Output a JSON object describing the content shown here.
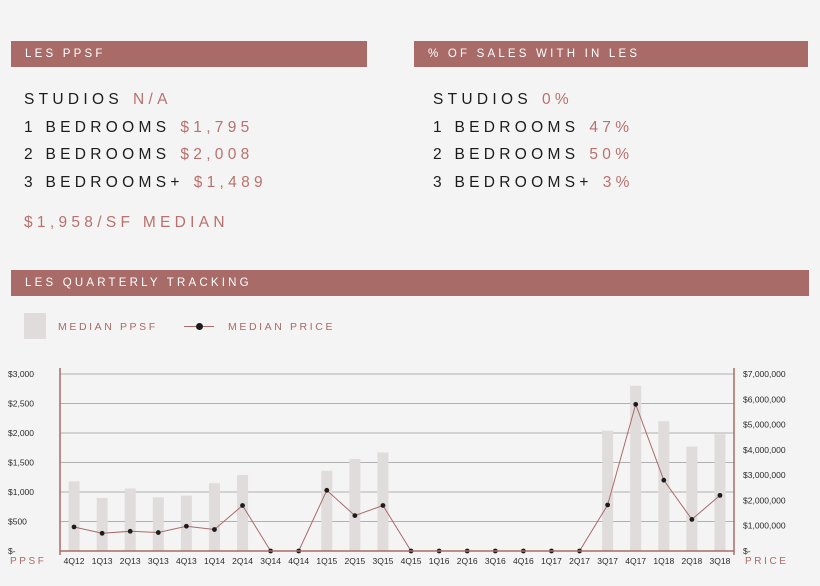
{
  "ppsf_section": {
    "header": "LES PPSF",
    "rows": [
      {
        "label": "STUDIOS",
        "value": "N/A"
      },
      {
        "label": "1 BEDROOMS",
        "value": "$1,795"
      },
      {
        "label": "2 BEDROOMS",
        "value": "$2,008"
      },
      {
        "label": "3 BEDROOMS+",
        "value": "$1,489"
      }
    ],
    "median": "$1,958/SF MEDIAN"
  },
  "sales_section": {
    "header": "% OF SALES WITH IN LES",
    "rows": [
      {
        "label": "STUDIOS",
        "value": "0%"
      },
      {
        "label": "1 BEDROOMS",
        "value": "47%"
      },
      {
        "label": "2 BEDROOMS",
        "value": "50%"
      },
      {
        "label": "3 BEDROOMS+",
        "value": "3%"
      }
    ]
  },
  "tracking_section": {
    "header": "LES QUARTERLY TRACKING"
  },
  "colors": {
    "accent": "#a86b68",
    "accent_text": "#b8716d",
    "bar": "#e1dcdc",
    "line": "#a86b68",
    "point": "#1c1c1c",
    "grid": "#9a9a9a"
  },
  "chart_data": {
    "type": "bar",
    "categories": [
      "4Q12",
      "1Q13",
      "2Q13",
      "3Q13",
      "4Q13",
      "1Q14",
      "2Q14",
      "3Q14",
      "4Q14",
      "1Q15",
      "2Q15",
      "3Q15",
      "4Q15",
      "1Q16",
      "2Q16",
      "3Q16",
      "4Q16",
      "1Q17",
      "2Q17",
      "3Q17",
      "4Q17",
      "1Q18",
      "2Q18",
      "3Q18"
    ],
    "series": [
      {
        "name": "MEDIAN PPSF",
        "type": "bar",
        "axis": "left",
        "values": [
          1180,
          900,
          1060,
          910,
          940,
          1150,
          1290,
          0,
          0,
          1360,
          1560,
          1670,
          0,
          0,
          0,
          0,
          0,
          0,
          0,
          2040,
          2800,
          2200,
          1770,
          1980
        ]
      },
      {
        "name": "MEDIAN PRICE",
        "type": "line",
        "axis": "right",
        "values": [
          950000,
          700000,
          780000,
          730000,
          980000,
          850000,
          1800000,
          0,
          0,
          2400000,
          1400000,
          1800000,
          0,
          0,
          0,
          0,
          0,
          0,
          0,
          1820000,
          5800000,
          2800000,
          1250000,
          2200000
        ]
      }
    ],
    "y_left": {
      "min": 0,
      "max": 3000,
      "ticks": [
        0,
        500,
        1000,
        1500,
        2000,
        2500,
        3000
      ],
      "tick_labels": [
        "$-",
        "$500",
        "$1,000",
        "$1,500",
        "$2,000",
        "$2,500",
        "$3,000"
      ],
      "label": "PPSF"
    },
    "y_right": {
      "min": 0,
      "max": 7000000,
      "ticks": [
        0,
        1000000,
        2000000,
        3000000,
        4000000,
        5000000,
        6000000,
        7000000
      ],
      "tick_labels": [
        "$-",
        "$1,000,000",
        "$2,000,000",
        "$3,000,000",
        "$4,000,000",
        "$5,000,000",
        "$6,000,000",
        "$7,000,000"
      ],
      "label": "PRICE"
    },
    "legend": {
      "placement": "top-left",
      "entries": [
        "MEDIAN PPSF",
        "MEDIAN PRICE"
      ]
    },
    "grid": true
  }
}
